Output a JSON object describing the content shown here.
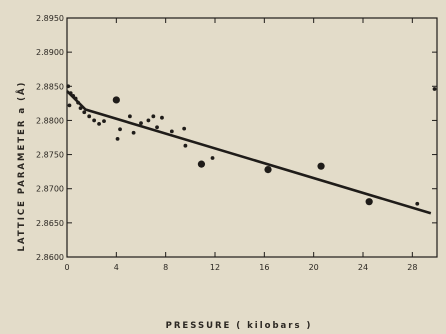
{
  "chart_data": {
    "type": "scatter",
    "title": "",
    "xlabel": "PRESSURE ( kilobars )",
    "ylabel": "LATTICE PARAMETER a (Å)",
    "xlim": [
      0,
      30
    ],
    "ylim": [
      2.86,
      2.895
    ],
    "x_ticks": [
      0,
      4,
      8,
      12,
      16,
      20,
      24,
      28
    ],
    "x_tick_labels": [
      "0",
      "4",
      "8",
      "12",
      "16",
      "20",
      "24",
      "28"
    ],
    "y_ticks": [
      2.86,
      2.865,
      2.87,
      2.875,
      2.88,
      2.885,
      2.89,
      2.895
    ],
    "y_tick_labels": [
      "2.8600",
      "2.8650",
      "2.8700",
      "2.8750",
      "2.8800",
      "2.8850",
      "2.8900",
      "2.8950"
    ],
    "grid": false,
    "colors": {
      "ink": "#1f1c19",
      "paper": "#e3dcc9"
    },
    "series": [
      {
        "marker": "large-dot",
        "points": [
          {
            "x": 4.0,
            "y": 2.883
          },
          {
            "x": 10.9,
            "y": 2.8736
          },
          {
            "x": 16.3,
            "y": 2.8728
          },
          {
            "x": 20.6,
            "y": 2.8733
          },
          {
            "x": 24.5,
            "y": 2.8681
          }
        ]
      },
      {
        "marker": "small-dot",
        "points": [
          {
            "x": 0.1,
            "y": 2.885
          },
          {
            "x": 0.3,
            "y": 2.884
          },
          {
            "x": 0.5,
            "y": 2.8836
          },
          {
            "x": 0.7,
            "y": 2.8832
          },
          {
            "x": 0.9,
            "y": 2.8826
          },
          {
            "x": 0.2,
            "y": 2.8822
          },
          {
            "x": 1.1,
            "y": 2.8818
          },
          {
            "x": 1.4,
            "y": 2.8812
          },
          {
            "x": 1.8,
            "y": 2.8806
          },
          {
            "x": 2.2,
            "y": 2.88
          },
          {
            "x": 2.6,
            "y": 2.8795
          },
          {
            "x": 3.0,
            "y": 2.8799
          },
          {
            "x": 4.1,
            "y": 2.8773
          },
          {
            "x": 4.3,
            "y": 2.8787
          },
          {
            "x": 5.1,
            "y": 2.8806
          },
          {
            "x": 5.4,
            "y": 2.8782
          },
          {
            "x": 6.0,
            "y": 2.8796
          },
          {
            "x": 6.6,
            "y": 2.88
          },
          {
            "x": 7.0,
            "y": 2.8806
          },
          {
            "x": 7.3,
            "y": 2.879
          },
          {
            "x": 7.7,
            "y": 2.8804
          },
          {
            "x": 8.5,
            "y": 2.8784
          },
          {
            "x": 9.5,
            "y": 2.8788
          },
          {
            "x": 9.6,
            "y": 2.8763
          },
          {
            "x": 11.8,
            "y": 2.8745
          },
          {
            "x": 28.4,
            "y": 2.8678
          },
          {
            "x": 29.8,
            "y": 2.8846
          }
        ]
      }
    ],
    "fit_line": {
      "points": [
        [
          0,
          2.8843
        ],
        [
          1.5,
          2.8816
        ],
        [
          29.5,
          2.8664
        ]
      ]
    }
  }
}
